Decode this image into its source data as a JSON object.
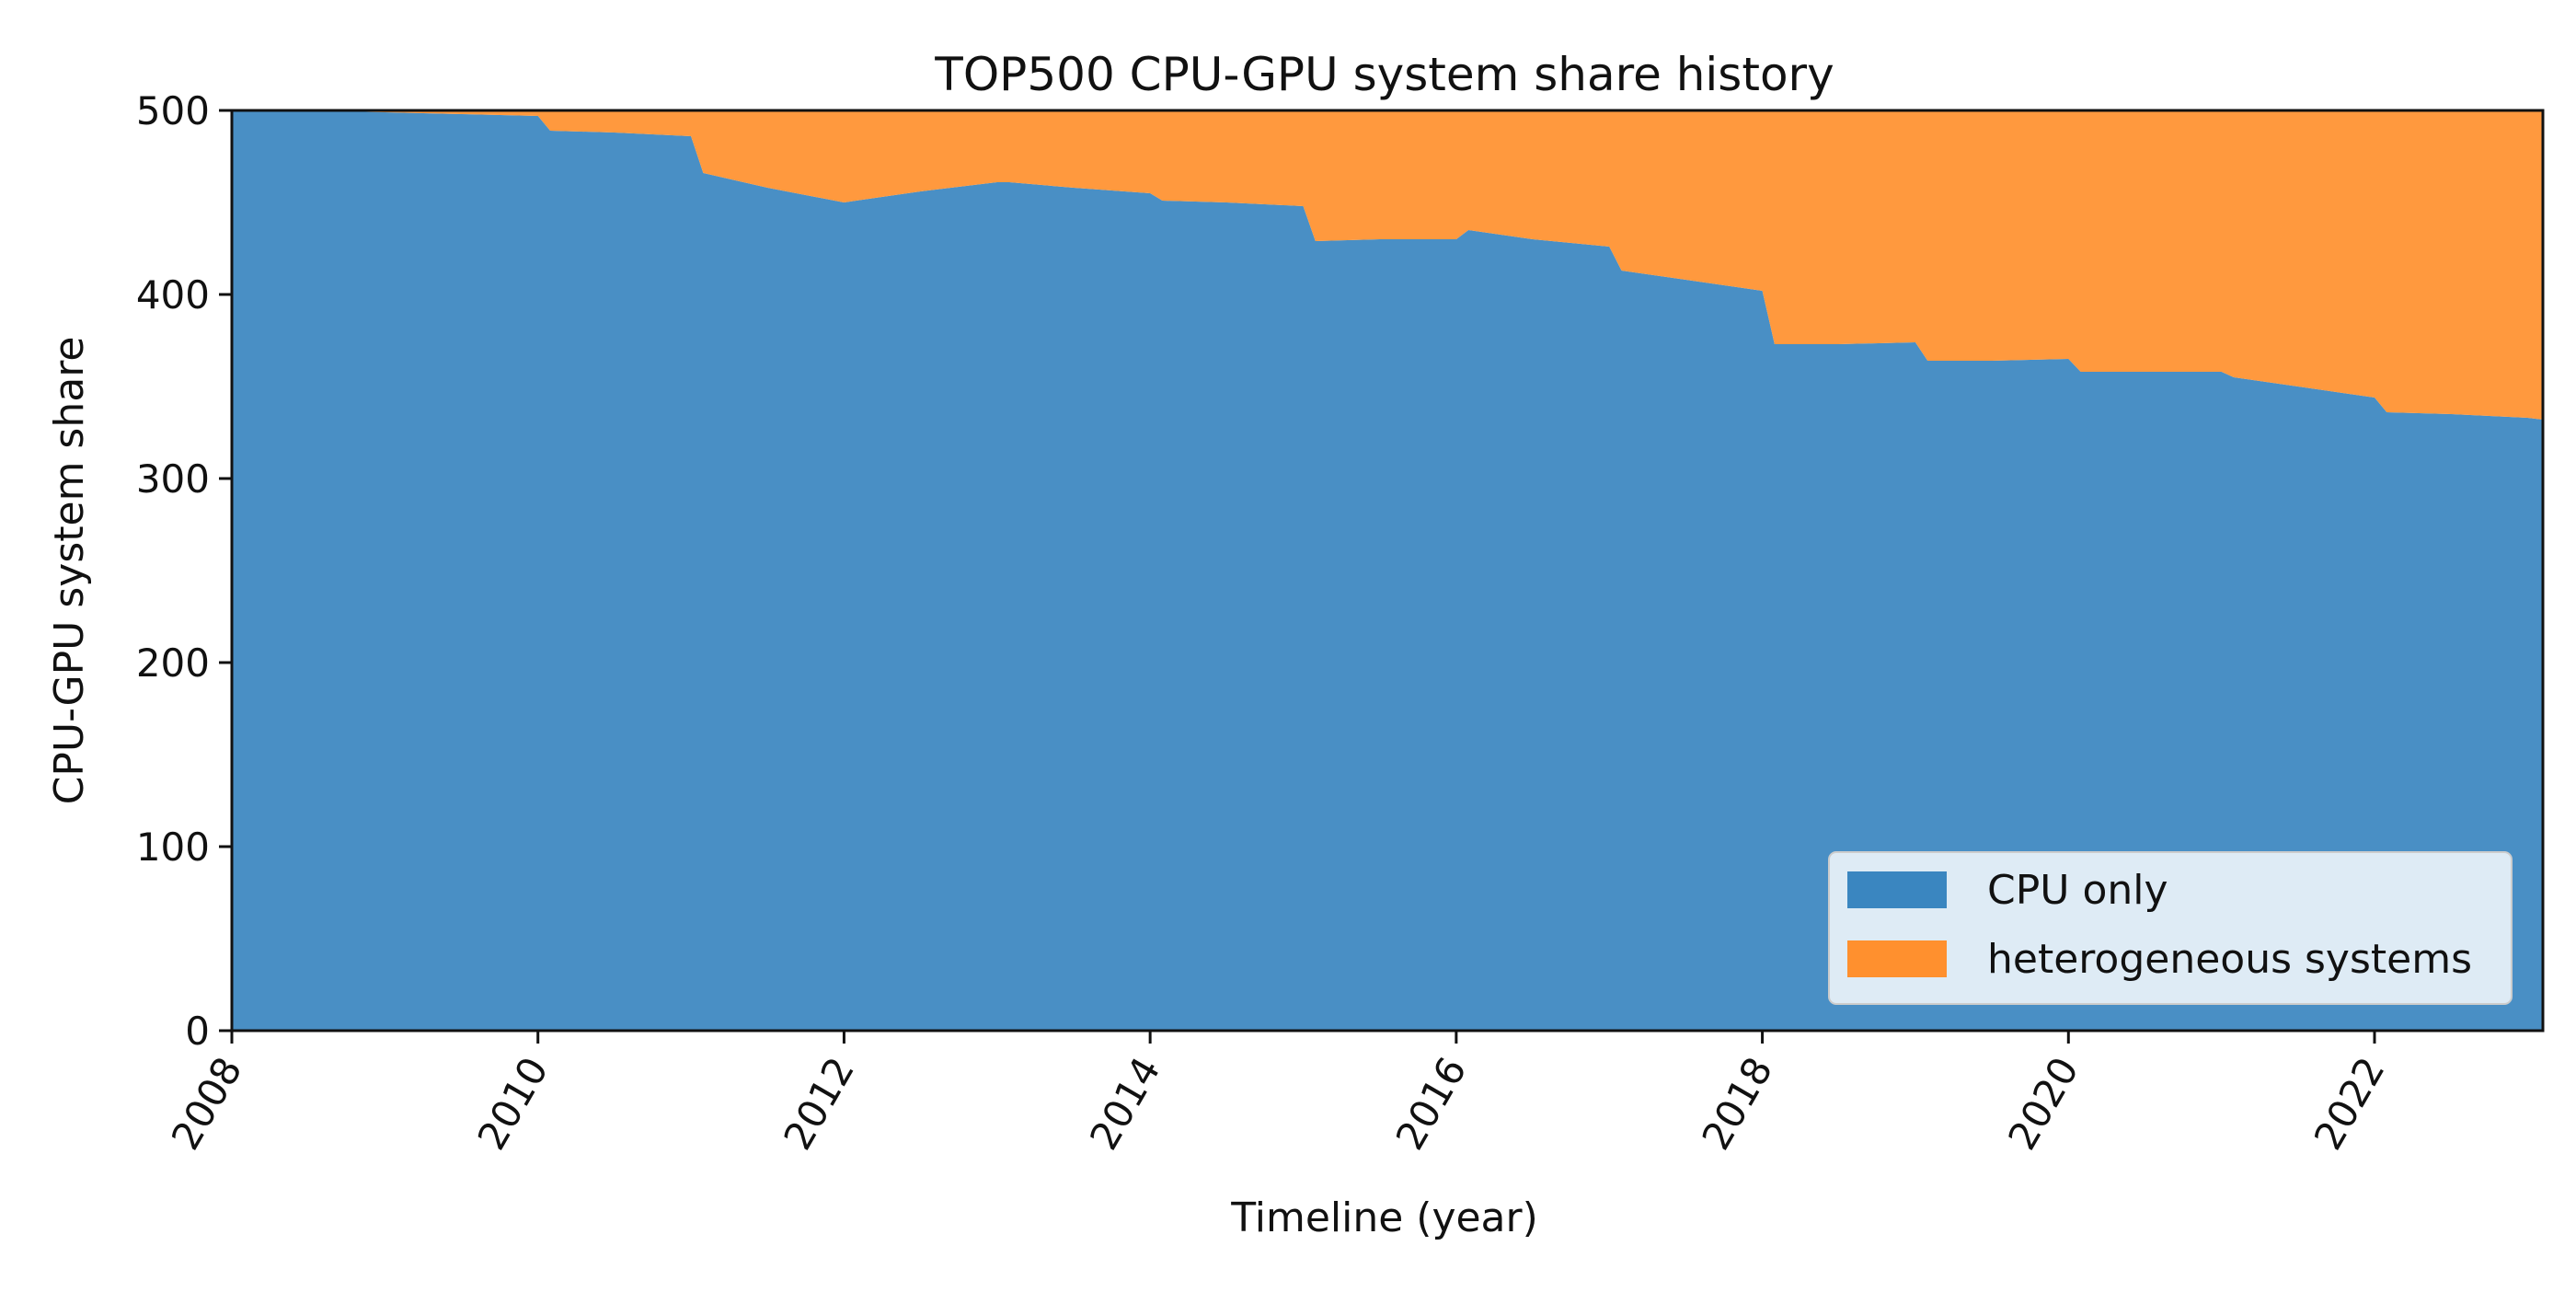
{
  "chart_data": {
    "type": "area",
    "stacked": true,
    "title": "TOP500 CPU-GPU system share history",
    "xlabel": "Timeline (year)",
    "ylabel": "CPU-GPU system share",
    "xlim": [
      2008.0,
      2023.1
    ],
    "ylim": [
      0,
      500
    ],
    "xticks": [
      "2008",
      "2010",
      "2012",
      "2014",
      "2016",
      "2018",
      "2020",
      "2022"
    ],
    "yticks": [
      "0",
      "100",
      "200",
      "300",
      "400",
      "500"
    ],
    "grid": false,
    "legend_position": "lower-right",
    "x": [
      2008.0,
      2008.5,
      2009.0,
      2009.5,
      2010.0,
      2010.08,
      2010.5,
      2011.0,
      2011.08,
      2011.5,
      2012.0,
      2012.08,
      2012.5,
      2013.0,
      2013.08,
      2013.5,
      2014.0,
      2014.08,
      2014.5,
      2015.0,
      2015.08,
      2015.5,
      2016.0,
      2016.08,
      2016.5,
      2017.0,
      2017.08,
      2017.5,
      2018.0,
      2018.08,
      2018.5,
      2019.0,
      2019.08,
      2019.5,
      2020.0,
      2020.08,
      2020.5,
      2021.0,
      2021.08,
      2021.5,
      2022.0,
      2022.08,
      2022.5,
      2023.0,
      2023.1
    ],
    "series": [
      {
        "name": "CPU only",
        "color": "#3a86c0",
        "values": [
          500,
          500,
          499,
          498,
          497,
          489,
          488,
          486,
          466,
          458,
          450,
          451,
          456,
          461,
          461,
          458,
          455,
          451,
          450,
          448,
          429,
          430,
          430,
          435,
          430,
          426,
          413,
          408,
          402,
          373,
          373,
          374,
          364,
          364,
          365,
          358,
          358,
          358,
          355,
          350,
          344,
          336,
          335,
          333,
          332
        ]
      },
      {
        "name": "heterogeneous systems",
        "color": "#ff902e",
        "values": [
          0,
          0,
          1,
          2,
          3,
          11,
          12,
          14,
          34,
          42,
          50,
          49,
          44,
          39,
          39,
          42,
          45,
          49,
          50,
          52,
          71,
          70,
          70,
          65,
          70,
          74,
          87,
          92,
          98,
          127,
          127,
          126,
          136,
          136,
          135,
          142,
          142,
          142,
          145,
          150,
          156,
          164,
          165,
          167,
          168
        ]
      }
    ]
  }
}
